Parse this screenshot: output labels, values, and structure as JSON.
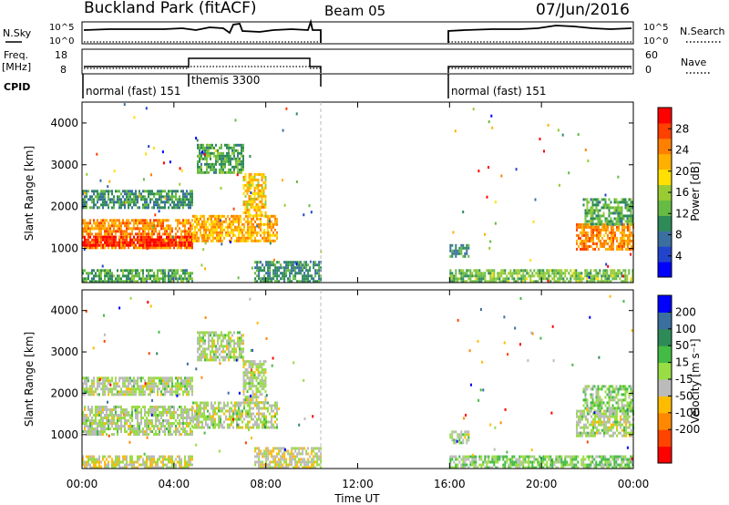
{
  "header": {
    "station": "Buckland Park (fitACF)",
    "beam": "Beam 05",
    "date": "07/Jun/2016"
  },
  "strip_panels": {
    "nsky_label": "N.Sky",
    "nsky_ticks": [
      "10^5",
      "10^0"
    ],
    "nsearch_label": "N.Search",
    "nsearch_ticks": [
      "10^5",
      "10^0"
    ],
    "freq_label_line1": "Freq.",
    "freq_label_line2": "[MHz]",
    "freq_ticks": [
      "18",
      "8"
    ],
    "nave_label": "Nave",
    "nave_ticks": [
      "60",
      "0"
    ],
    "cpid_label": "CPID",
    "cpid_segments": [
      {
        "label": "normal (fast) 151",
        "start_h": 0,
        "end_h": 4.8
      },
      {
        "label": "themis 3300",
        "start_h": 4.8,
        "end_h": 10.4
      },
      {
        "label": "normal (fast) 151",
        "start_h": 16.0,
        "end_h": 24.0
      }
    ]
  },
  "chart_data": [
    {
      "type": "heatmap",
      "name": "power-panel",
      "xlabel": "",
      "ylabel": "Slant Range [km]",
      "xlim": [
        0,
        24
      ],
      "ylim": [
        180,
        4500
      ],
      "y_ticks": [
        "4000",
        "3000",
        "2000",
        "1000"
      ],
      "y_tick_values": [
        4000,
        3000,
        2000,
        1000
      ],
      "colorbar_label": "Power [dB]",
      "colorbar_ticks": [
        "28",
        "24",
        "20",
        "16",
        "12",
        "8",
        "4"
      ],
      "colorbar_tick_values": [
        28,
        24,
        20,
        16,
        12,
        8,
        4
      ],
      "colorbar_range": [
        0,
        32
      ],
      "colors": [
        "#0000ff",
        "#2244cc",
        "#3a6fa0",
        "#2e8b57",
        "#66bb44",
        "#99cc33",
        "#ffe000",
        "#ffb000",
        "#ff8000",
        "#ff4000",
        "#ff0000"
      ],
      "data_gaps_h": [
        [
          10.4,
          16.0
        ]
      ],
      "echo_regions": [
        {
          "t": [
            0.0,
            4.8
          ],
          "r": [
            2000,
            2400
          ],
          "value": 10
        },
        {
          "t": [
            0.0,
            4.8
          ],
          "r": [
            1000,
            1700
          ],
          "value": 24
        },
        {
          "t": [
            0.0,
            4.8
          ],
          "r": [
            1100,
            1300
          ],
          "value": 30
        },
        {
          "t": [
            0.0,
            4.8
          ],
          "r": [
            200,
            500
          ],
          "value": 12
        },
        {
          "t": [
            4.8,
            8.5
          ],
          "r": [
            1200,
            1800
          ],
          "value": 22
        },
        {
          "t": [
            7.0,
            8.0
          ],
          "r": [
            1800,
            2800
          ],
          "value": 20
        },
        {
          "t": [
            5.0,
            7.0
          ],
          "r": [
            2800,
            3500
          ],
          "value": 12
        },
        {
          "t": [
            7.5,
            10.4
          ],
          "r": [
            200,
            700
          ],
          "value": 10
        },
        {
          "t": [
            16.0,
            24.0
          ],
          "r": [
            200,
            500
          ],
          "value": 14
        },
        {
          "t": [
            16.0,
            16.8
          ],
          "r": [
            800,
            1100
          ],
          "value": 10
        },
        {
          "t": [
            21.5,
            24.0
          ],
          "r": [
            1000,
            1600
          ],
          "value": 24
        },
        {
          "t": [
            21.8,
            24.0
          ],
          "r": [
            1600,
            2200
          ],
          "value": 12
        }
      ]
    },
    {
      "type": "heatmap",
      "name": "velocity-panel",
      "xlabel": "Time UT",
      "ylabel": "Slant Range [km]",
      "xlim": [
        0,
        24
      ],
      "x_ticks": [
        "00:00",
        "04:00",
        "08:00",
        "12:00",
        "16:00",
        "20:00",
        "00:00"
      ],
      "x_tick_values": [
        0,
        4,
        8,
        12,
        16,
        20,
        24
      ],
      "ylim": [
        180,
        4500
      ],
      "y_ticks": [
        "4000",
        "3000",
        "2000",
        "1000"
      ],
      "y_tick_values": [
        4000,
        3000,
        2000,
        1000
      ],
      "colorbar_label": "Velocity [m s⁻¹]",
      "colorbar_ticks": [
        "200",
        "100",
        "50",
        "15",
        "-15",
        "-50",
        "-100",
        "-200"
      ],
      "colorbar_tick_values": [
        200,
        100,
        50,
        15,
        -15,
        -50,
        -100,
        -200
      ],
      "colorbar_range": [
        -250,
        250
      ],
      "colors": [
        "#ff0000",
        "#ff4400",
        "#ff8800",
        "#ffbb00",
        "#bbbbbb",
        "#99dd44",
        "#44bb44",
        "#2e8b57",
        "#3a6fa0",
        "#0000ff"
      ],
      "data_gaps_h": [
        [
          10.4,
          16.0
        ]
      ],
      "echo_regions": [
        {
          "t": [
            0.0,
            4.8
          ],
          "r": [
            2000,
            2400
          ],
          "value": 0
        },
        {
          "t": [
            0.0,
            4.8
          ],
          "r": [
            1000,
            1700
          ],
          "value": 0
        },
        {
          "t": [
            0.0,
            4.8
          ],
          "r": [
            200,
            500
          ],
          "value": -20
        },
        {
          "t": [
            4.8,
            8.5
          ],
          "r": [
            1200,
            1800
          ],
          "value": 0
        },
        {
          "t": [
            7.0,
            8.0
          ],
          "r": [
            1800,
            2800
          ],
          "value": 0
        },
        {
          "t": [
            5.0,
            7.0
          ],
          "r": [
            2800,
            3500
          ],
          "value": 0
        },
        {
          "t": [
            7.5,
            10.4
          ],
          "r": [
            200,
            700
          ],
          "value": -30
        },
        {
          "t": [
            16.0,
            24.0
          ],
          "r": [
            200,
            500
          ],
          "value": 40
        },
        {
          "t": [
            16.0,
            16.8
          ],
          "r": [
            800,
            1100
          ],
          "value": 0
        },
        {
          "t": [
            21.5,
            24.0
          ],
          "r": [
            1000,
            1600
          ],
          "value": 0
        },
        {
          "t": [
            21.8,
            24.0
          ],
          "r": [
            1600,
            2200
          ],
          "value": 30
        }
      ]
    }
  ]
}
